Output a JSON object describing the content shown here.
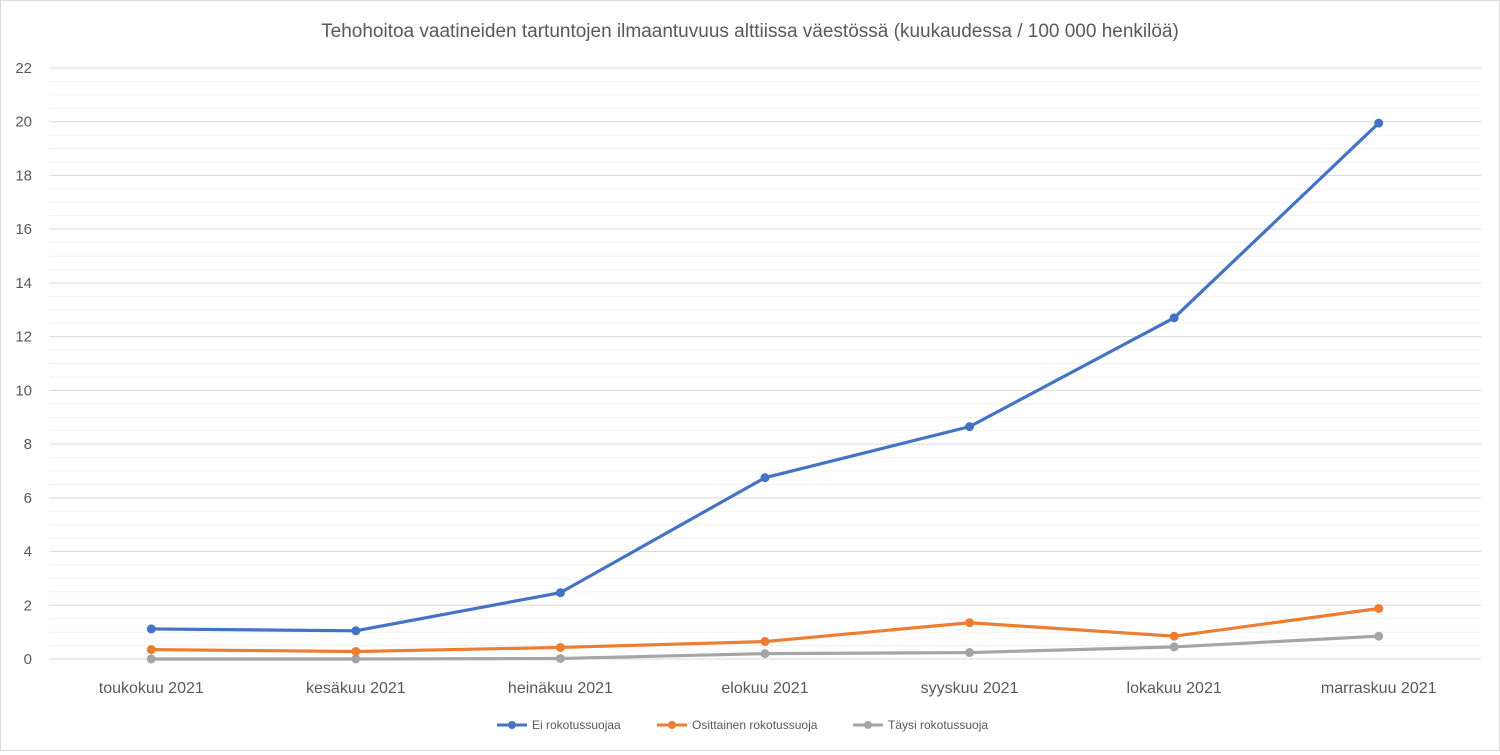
{
  "chart_data": {
    "type": "line",
    "title": "Tehohoitoa vaatineiden tartuntojen ilmaantuvuus alttiissa väestössä (kuukaudessa / 100 000 henkilöä)",
    "xlabel": "",
    "ylabel": "",
    "categories": [
      "toukokuu 2021",
      "kesäkuu 2021",
      "heinäkuu 2021",
      "elokuu 2021",
      "syyskuu 2021",
      "lokakuu 2021",
      "marraskuu 2021"
    ],
    "ylim": [
      0,
      22
    ],
    "yticks": [
      "0",
      "2",
      "4",
      "6",
      "8",
      "10",
      "12",
      "14",
      "16",
      "18",
      "20",
      "22"
    ],
    "minor_grid_step": 0.5,
    "grid": true,
    "legend_position": "bottom",
    "series": [
      {
        "name": "Ei rokotussuojaa",
        "color": "#4472c4",
        "values": [
          1.12,
          1.05,
          2.47,
          6.75,
          8.65,
          12.7,
          19.95
        ]
      },
      {
        "name": "Osittainen rokotussuoja",
        "color": "#ed7d31",
        "values": [
          0.35,
          0.28,
          0.43,
          0.65,
          1.35,
          0.85,
          1.88
        ]
      },
      {
        "name": "Täysi rokotussuoja",
        "color": "#a5a5a5",
        "values": [
          0.0,
          0.0,
          0.02,
          0.2,
          0.24,
          0.45,
          0.85
        ]
      }
    ]
  }
}
